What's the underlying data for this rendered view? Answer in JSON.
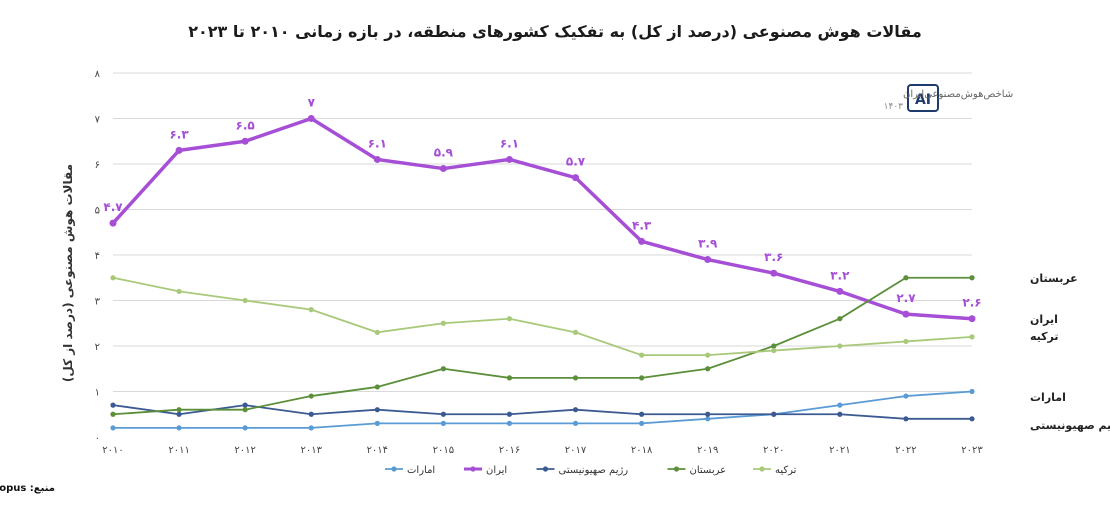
{
  "chart_data": {
    "type": "line",
    "title": "مقالات هوش مصنوعی (درصد از کل) به تفکیک کشورهای منطقه، در بازه زمانی ۲۰۱۰ تا ۲۰۲۳",
    "ylabel": "مقالات هوش مصنوعی (درصد از کل)",
    "xlabel": "",
    "x": [
      2010,
      2011,
      2012,
      2013,
      2014,
      2015,
      2016,
      2017,
      2018,
      2019,
      2020,
      2021,
      2022,
      2023
    ],
    "x_tick_labels": [
      "۲۰۱۰",
      "۲۰۱۱",
      "۲۰۱۲",
      "۲۰۱۳",
      "۲۰۱۴",
      "۲۰۱۵",
      "۲۰۱۶",
      "۲۰۱۷",
      "۲۰۱۸",
      "۲۰۱۹",
      "۲۰۲۰",
      "۲۰۲۱",
      "۲۰۲۲",
      "۲۰۲۳"
    ],
    "ylim": [
      0,
      8
    ],
    "y_ticks": [
      0,
      1,
      2,
      3,
      4,
      5,
      6,
      7,
      8
    ],
    "y_tick_labels": [
      "۰",
      "۱",
      "۲",
      "۳",
      "۴",
      "۵",
      "۶",
      "۷",
      "۸"
    ],
    "grid": true,
    "legend_position": "bottom",
    "series": [
      {
        "name": "امارات",
        "color": "#5b9bd5",
        "values": [
          0.2,
          0.2,
          0.2,
          0.2,
          0.3,
          0.3,
          0.3,
          0.3,
          0.3,
          0.4,
          0.5,
          0.7,
          0.9,
          1.0
        ]
      },
      {
        "name": "ایران",
        "color": "#a64fd6",
        "values": [
          4.7,
          6.3,
          6.5,
          7.0,
          6.1,
          5.9,
          6.1,
          5.7,
          4.3,
          3.9,
          3.6,
          3.2,
          2.7,
          2.6
        ],
        "data_labels": [
          "۴.۷",
          "۶.۳",
          "۶.۵",
          "۷",
          "۶.۱",
          "۵.۹",
          "۶.۱",
          "۵.۷",
          "۴.۳",
          "۳.۹",
          "۳.۶",
          "۳.۲",
          "۲.۷",
          "۲.۶"
        ]
      },
      {
        "name": "رژیم صهیونیستی",
        "color": "#3b5a91",
        "values": [
          0.7,
          0.5,
          0.7,
          0.5,
          0.6,
          0.5,
          0.5,
          0.6,
          0.5,
          0.5,
          0.5,
          0.5,
          0.4,
          0.4
        ]
      },
      {
        "name": "عربستان",
        "color": "#5b8f3a",
        "values": [
          0.5,
          0.6,
          0.6,
          0.9,
          1.1,
          1.5,
          1.3,
          1.3,
          1.3,
          1.5,
          2.0,
          2.6,
          3.5,
          3.5
        ]
      },
      {
        "name": "ترکیه",
        "color": "#a9c97a",
        "values": [
          3.5,
          3.2,
          3.0,
          2.8,
          2.3,
          2.5,
          2.6,
          2.3,
          1.8,
          1.8,
          1.9,
          2.0,
          2.1,
          2.2
        ]
      }
    ],
    "end_labels": [
      "عربستان",
      "ایران",
      "ترکیه",
      "امارات",
      "رژیم صهیونیستی"
    ],
    "legend_order": [
      "امارات",
      "ایران",
      "رژیم صهیونیستی",
      "عربستان",
      "ترکیه"
    ]
  },
  "source": "منبع: Scopus",
  "brand": {
    "name": "شاخص‌هوش‌مصنوعی‌ایران",
    "year": "۱۴۰۳",
    "logo": "AI"
  }
}
